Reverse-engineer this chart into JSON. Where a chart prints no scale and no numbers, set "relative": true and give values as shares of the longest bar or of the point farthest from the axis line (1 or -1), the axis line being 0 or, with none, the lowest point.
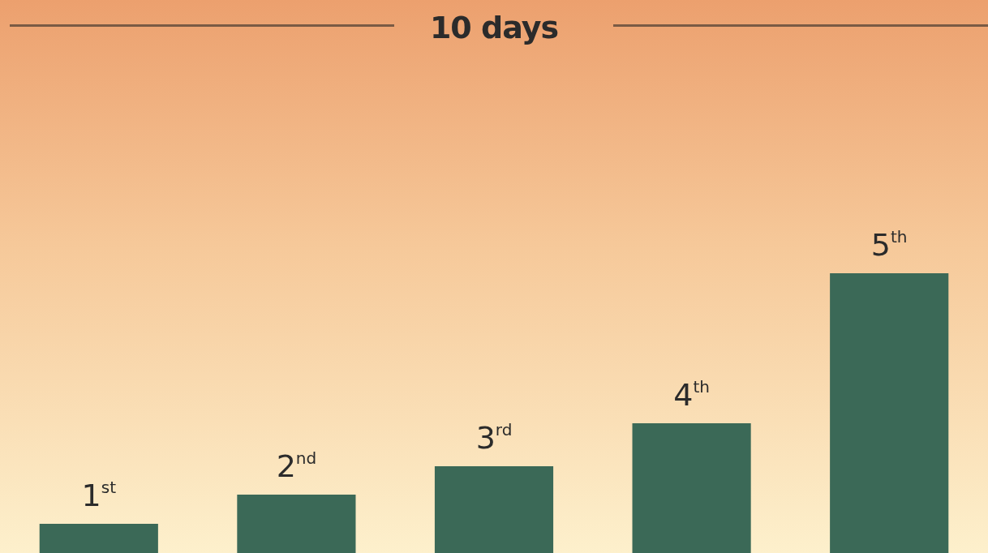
{
  "chart_data": {
    "type": "bar",
    "title": "10 days",
    "categories": [
      "1$^{st}$",
      "2$^{nd}$",
      "3$^{rd}$",
      "4$^{th}$",
      "5$^{th}$"
    ],
    "values": [
      0.104,
      0.209,
      0.31,
      0.464,
      1
    ],
    "color": "#3b6957",
    "relative": true,
    "grid": false,
    "legend": false
  }
}
